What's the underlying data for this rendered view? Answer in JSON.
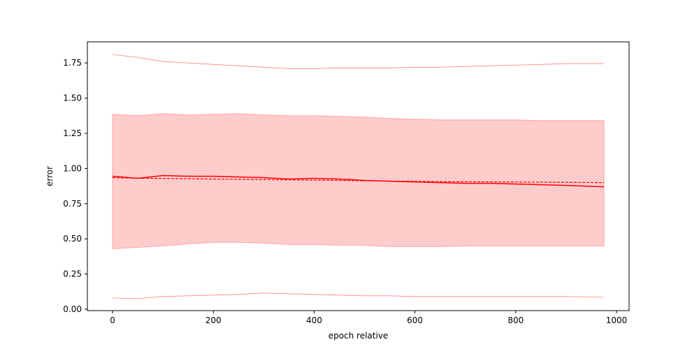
{
  "chart_data": {
    "type": "line",
    "title": "",
    "xlabel": "epoch relative",
    "ylabel": "error",
    "xlim": [
      -50,
      1025
    ],
    "ylim": [
      -0.01,
      1.9
    ],
    "xticks": [
      0,
      200,
      400,
      600,
      800,
      1000
    ],
    "xtick_labels": [
      "0",
      "200",
      "400",
      "600",
      "800",
      "1000"
    ],
    "yticks": [
      0.0,
      0.25,
      0.5,
      0.75,
      1.0,
      1.25,
      1.5,
      1.75
    ],
    "ytick_labels": [
      "0.00",
      "0.25",
      "0.50",
      "0.75",
      "1.00",
      "1.25",
      "1.50",
      "1.75"
    ],
    "grid": false,
    "legend": "none",
    "colors": {
      "mean": "#ff0000",
      "band_fill": "#ffcccc",
      "band_edge": "#ffaaaa",
      "extreme": "#ff8080"
    },
    "x": [
      0,
      50,
      100,
      150,
      200,
      250,
      300,
      350,
      400,
      450,
      500,
      550,
      600,
      650,
      700,
      750,
      800,
      850,
      900,
      975
    ],
    "series": [
      {
        "values": [
          0.945,
          0.93,
          0.95,
          0.945,
          0.945,
          0.94,
          0.935,
          0.925,
          0.93,
          0.925,
          0.915,
          0.91,
          0.905,
          0.9,
          0.895,
          0.895,
          0.89,
          0.885,
          0.88,
          0.87
        ],
        "style": "solid"
      },
      {
        "values": [
          0.935,
          0.931,
          0.929,
          0.927,
          0.925,
          0.923,
          0.921,
          0.919,
          0.917,
          0.915,
          0.913,
          0.911,
          0.909,
          0.907,
          0.906,
          0.905,
          0.904,
          0.903,
          0.902,
          0.9
        ],
        "style": "dashed"
      },
      {
        "values": [
          1.385,
          1.375,
          1.39,
          1.38,
          1.385,
          1.39,
          1.38,
          1.375,
          1.375,
          1.37,
          1.365,
          1.355,
          1.35,
          1.345,
          1.345,
          1.345,
          1.345,
          1.34,
          1.34,
          1.34
        ],
        "style": "band-upper"
      },
      {
        "values": [
          0.43,
          0.44,
          0.45,
          0.465,
          0.475,
          0.475,
          0.47,
          0.46,
          0.46,
          0.455,
          0.455,
          0.445,
          0.445,
          0.445,
          0.45,
          0.45,
          0.45,
          0.45,
          0.45,
          0.45
        ],
        "style": "band-lower"
      },
      {
        "values": [
          1.81,
          1.79,
          1.76,
          1.75,
          1.74,
          1.73,
          1.72,
          1.71,
          1.71,
          1.715,
          1.715,
          1.715,
          1.72,
          1.72,
          1.725,
          1.73,
          1.735,
          1.74,
          1.745,
          1.745
        ],
        "style": "max"
      },
      {
        "values": [
          0.08,
          0.075,
          0.09,
          0.095,
          0.1,
          0.105,
          0.115,
          0.11,
          0.105,
          0.1,
          0.095,
          0.095,
          0.09,
          0.09,
          0.09,
          0.09,
          0.09,
          0.09,
          0.09,
          0.085
        ],
        "style": "min"
      }
    ]
  }
}
